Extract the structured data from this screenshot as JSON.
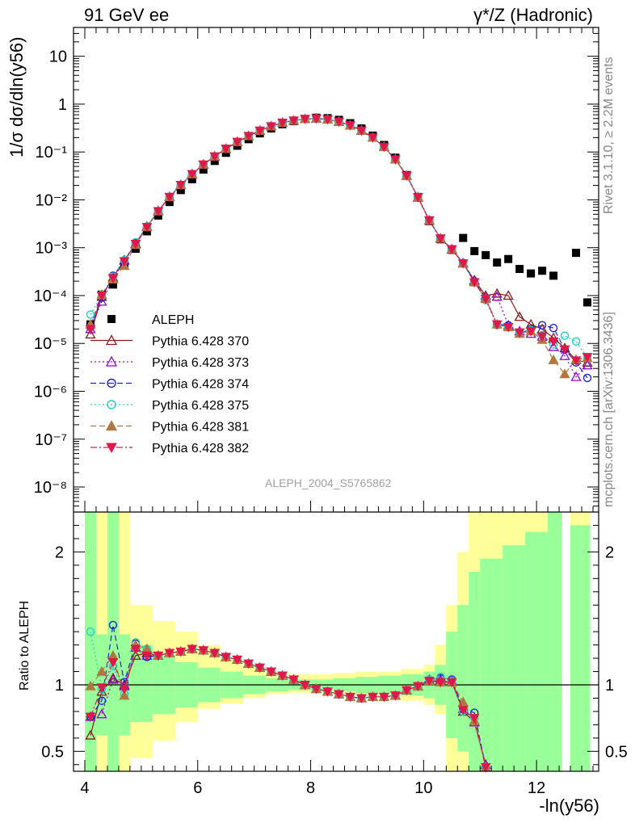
{
  "header": {
    "left_title": "91 GeV ee",
    "right_title": "γ*/Z (Hadronic)"
  },
  "side_labels": {
    "rivet": "Rivet 3.1.10, ≥ 2.2M events",
    "mcplots": "mcplots.cern.ch [arXiv:1306.3436]"
  },
  "analysis_id": "ALEPH_2004_S5765862",
  "colors": {
    "data": "#000000",
    "p370": "#8b1a1a",
    "p373": "#9400d3",
    "p374": "#2020dd",
    "p375": "#20d0c0",
    "p381": "#b07840",
    "p382": "#e0184a",
    "band_inner": "#99ff99",
    "band_outer": "#ffff99"
  },
  "chart_data": [
    {
      "type": "scatter",
      "panel": "main",
      "ylabel": "1/σ  dσ/dln(y56)",
      "xlabel": "-ln(y56)",
      "yscale": "log",
      "xlim": [
        3.8,
        13.1
      ],
      "ylim": [
        3e-09,
        40
      ],
      "y_tick_labels": [
        "10⁻⁸",
        "10⁻⁷",
        "10⁻⁶",
        "10⁻⁵",
        "10⁻⁴",
        "10⁻³",
        "10⁻²",
        "10⁻¹",
        "1",
        "10"
      ],
      "legend_position": "left-middle",
      "x": [
        4.1,
        4.3,
        4.5,
        4.7,
        4.9,
        5.1,
        5.3,
        5.5,
        5.7,
        5.9,
        6.1,
        6.3,
        6.5,
        6.7,
        6.9,
        7.1,
        7.3,
        7.5,
        7.7,
        7.9,
        8.1,
        8.3,
        8.5,
        8.7,
        8.9,
        9.1,
        9.3,
        9.5,
        9.7,
        9.9,
        10.1,
        10.3,
        10.5,
        10.7,
        10.9,
        11.1,
        11.3,
        11.5,
        11.7,
        11.9,
        12.1,
        12.3,
        12.5,
        12.7,
        12.9
      ],
      "series": [
        {
          "name": "ALEPH",
          "key": "data",
          "marker": "square-filled",
          "values": [
            2.5e-05,
            0.000105,
            0.00017,
            0.00045,
            0.00095,
            0.0022,
            0.0047,
            0.009,
            0.016,
            0.027,
            0.043,
            0.065,
            0.096,
            0.135,
            0.185,
            0.245,
            0.31,
            0.38,
            0.44,
            0.49,
            0.52,
            0.51,
            0.47,
            0.4,
            0.31,
            0.22,
            0.14,
            0.076,
            0.033,
            0.0115,
            0.0036,
            0.0015,
            0.0009,
            0.0016,
            0.00085,
            0.0007,
            0.00049,
            0.00058,
            0.00036,
            0.00029,
            0.00033,
            0.00026,
            null,
            0.00078,
            7.2e-05
          ]
        },
        {
          "name": "Pythia 6.428 370",
          "key": "p370",
          "marker": "triangle-up-open",
          "line": "solid",
          "values": [
            1.55e-05,
            9.5e-05,
            0.00024,
            0.00055,
            0.0012,
            0.00275,
            0.0058,
            0.0115,
            0.0205,
            0.0345,
            0.055,
            0.081,
            0.117,
            0.163,
            0.216,
            0.28,
            0.345,
            0.41,
            0.455,
            0.49,
            0.5,
            0.48,
            0.43,
            0.36,
            0.28,
            0.2,
            0.128,
            0.07,
            0.032,
            0.0112,
            0.0037,
            0.00155,
            0.00092,
            0.00047,
            0.00021,
            0.0001,
            0.00011,
            0.0001,
            3.6e-05,
            2.5e-05,
            2e-05,
            1.3e-05,
            8e-06,
            4.5e-06,
            4e-06
          ]
        },
        {
          "name": "Pythia 6.428 373",
          "key": "p373",
          "marker": "triangle-up-open",
          "line": "dotted",
          "values": [
            2e-05,
            7.5e-05,
            0.00022,
            0.00054,
            0.00122,
            0.00278,
            0.0059,
            0.0116,
            0.0206,
            0.0346,
            0.055,
            0.081,
            0.117,
            0.163,
            0.216,
            0.28,
            0.345,
            0.41,
            0.455,
            0.49,
            0.5,
            0.48,
            0.43,
            0.36,
            0.28,
            0.2,
            0.128,
            0.07,
            0.032,
            0.0114,
            0.00375,
            0.00157,
            0.00093,
            0.00048,
            0.0002,
            9e-05,
            9.5e-05,
            2.4e-05,
            1.8e-05,
            1.6e-05,
            1.4e-05,
            8.5e-06,
            5.5e-06,
            2e-06,
            3.5e-06
          ]
        },
        {
          "name": "Pythia 6.428 374",
          "key": "p374",
          "marker": "circle-open",
          "line": "dashed",
          "values": [
            2.2e-05,
            9e-05,
            0.00026,
            0.00053,
            0.00125,
            0.00275,
            0.0058,
            0.0116,
            0.0205,
            0.0345,
            0.055,
            0.081,
            0.117,
            0.163,
            0.216,
            0.28,
            0.345,
            0.41,
            0.455,
            0.49,
            0.5,
            0.48,
            0.43,
            0.36,
            0.28,
            0.2,
            0.128,
            0.07,
            0.032,
            0.0114,
            0.00375,
            0.00158,
            0.00094,
            0.00048,
            0.0002,
            8.5e-05,
            2.5e-05,
            2.4e-05,
            1.6e-05,
            2e-05,
            2.4e-05,
            2.1e-05,
            7.5e-06,
            4e-06,
            1.9e-06
          ]
        },
        {
          "name": "Pythia 6.428 375",
          "key": "p375",
          "marker": "circle-open",
          "line": "dotted",
          "values": [
            4e-05,
            0.000105,
            0.00025,
            0.00055,
            0.0013,
            0.0028,
            0.0059,
            0.0116,
            0.0206,
            0.0346,
            0.055,
            0.081,
            0.117,
            0.163,
            0.216,
            0.28,
            0.345,
            0.41,
            0.455,
            0.49,
            0.5,
            0.48,
            0.43,
            0.36,
            0.28,
            0.2,
            0.128,
            0.07,
            0.032,
            0.0114,
            0.0038,
            0.00158,
            0.00093,
            0.00047,
            0.00019,
            8e-05,
            2.4e-05,
            2.2e-05,
            1.7e-05,
            1.9e-05,
            1.5e-05,
            9.5e-06,
            1.45e-05,
            1.1e-05,
            5e-06
          ]
        },
        {
          "name": "Pythia 6.428 381",
          "key": "p381",
          "marker": "triangle-up-filled",
          "line": "dashed",
          "values": [
            2.5e-05,
            0.000105,
            0.00022,
            0.00042,
            0.00115,
            0.0027,
            0.0058,
            0.0115,
            0.0205,
            0.0345,
            0.055,
            0.081,
            0.117,
            0.163,
            0.216,
            0.28,
            0.345,
            0.41,
            0.455,
            0.49,
            0.5,
            0.48,
            0.43,
            0.36,
            0.28,
            0.2,
            0.128,
            0.07,
            0.032,
            0.0114,
            0.00375,
            0.00156,
            0.00093,
            0.00047,
            0.00019,
            8.5e-05,
            2.5e-05,
            2.2e-05,
            1.6e-05,
            1.8e-05,
            1.2e-05,
            4.5e-06,
            2.3e-06,
            4.6e-06,
            5e-06
          ]
        },
        {
          "name": "Pythia 6.428 382",
          "key": "p382",
          "marker": "triangle-down-filled",
          "line": "dashdot",
          "values": [
            2e-05,
            0.0001,
            0.00023,
            0.00052,
            0.0012,
            0.0027,
            0.0058,
            0.0115,
            0.0205,
            0.0345,
            0.055,
            0.081,
            0.117,
            0.163,
            0.216,
            0.28,
            0.345,
            0.41,
            0.455,
            0.49,
            0.5,
            0.48,
            0.43,
            0.36,
            0.28,
            0.2,
            0.128,
            0.07,
            0.032,
            0.0114,
            0.00375,
            0.00156,
            0.00093,
            0.00047,
            0.00019,
            8.5e-05,
            2.5e-05,
            2.2e-05,
            1.7e-05,
            1.8e-05,
            1.4e-05,
            1.1e-05,
            7.5e-06,
            4.4e-06,
            5.2e-06
          ]
        }
      ]
    },
    {
      "type": "scatter",
      "panel": "ratio",
      "ylabel": "Ratio to ALEPH",
      "xlabel": "-ln(y56)",
      "xlim": [
        3.8,
        13.1
      ],
      "ylim": [
        0.35,
        2.3
      ],
      "y_ticks": [
        0.5,
        1,
        2
      ],
      "x_ticks": [
        4,
        6,
        8,
        10,
        12
      ],
      "reference_line": 1,
      "x": [
        4.1,
        4.3,
        4.5,
        4.7,
        4.9,
        5.1,
        5.3,
        5.5,
        5.7,
        5.9,
        6.1,
        6.3,
        6.5,
        6.7,
        6.9,
        7.1,
        7.3,
        7.5,
        7.7,
        7.9,
        8.1,
        8.3,
        8.5,
        8.7,
        8.9,
        9.1,
        9.3,
        9.5,
        9.7,
        9.9,
        10.1,
        10.3,
        10.5,
        10.7,
        10.9,
        11.1
      ],
      "band_inner": [
        [
          4.0,
          4.2,
          0.3,
          2.3
        ],
        [
          4.2,
          4.4,
          0.62,
          1.38
        ],
        [
          4.4,
          4.6,
          0.35,
          2.3
        ],
        [
          4.6,
          4.8,
          0.62,
          1.38
        ],
        [
          4.8,
          5.2,
          0.72,
          1.3
        ],
        [
          5.2,
          5.6,
          0.78,
          1.22
        ],
        [
          5.6,
          6.0,
          0.83,
          1.17
        ],
        [
          6.0,
          6.4,
          0.87,
          1.13
        ],
        [
          6.4,
          6.8,
          0.9,
          1.1
        ],
        [
          6.8,
          7.2,
          0.93,
          1.07
        ],
        [
          7.2,
          7.6,
          0.95,
          1.05
        ],
        [
          7.6,
          8.0,
          0.96,
          1.04
        ],
        [
          8.0,
          8.4,
          0.96,
          1.04
        ],
        [
          8.4,
          8.8,
          0.95,
          1.05
        ],
        [
          8.8,
          9.2,
          0.94,
          1.06
        ],
        [
          9.2,
          9.6,
          0.93,
          1.07
        ],
        [
          9.6,
          10.0,
          0.92,
          1.08
        ],
        [
          10.0,
          10.2,
          0.9,
          1.1
        ],
        [
          10.2,
          10.4,
          0.85,
          1.15
        ],
        [
          10.4,
          10.6,
          0.6,
          1.4
        ],
        [
          10.6,
          10.8,
          0.5,
          1.6
        ],
        [
          10.8,
          11.0,
          0.35,
          1.85
        ],
        [
          11.0,
          11.4,
          0.3,
          1.95
        ],
        [
          11.4,
          11.8,
          0.3,
          2.05
        ],
        [
          11.8,
          12.2,
          0.3,
          2.15
        ],
        [
          12.2,
          12.45,
          0.3,
          2.3
        ],
        [
          12.6,
          12.95,
          0.3,
          2.2
        ]
      ],
      "band_outer": [
        [
          4.0,
          4.2,
          0.3,
          2.3
        ],
        [
          4.2,
          4.4,
          0.3,
          2.3
        ],
        [
          4.4,
          4.6,
          0.3,
          2.3
        ],
        [
          4.6,
          4.8,
          0.3,
          2.3
        ],
        [
          4.8,
          5.2,
          0.45,
          1.6
        ],
        [
          5.2,
          5.6,
          0.58,
          1.48
        ],
        [
          5.6,
          6.0,
          0.72,
          1.4
        ],
        [
          6.0,
          6.4,
          0.82,
          1.3
        ],
        [
          6.4,
          6.8,
          0.86,
          1.2
        ],
        [
          6.8,
          7.2,
          0.9,
          1.14
        ],
        [
          7.2,
          7.6,
          0.93,
          1.1
        ],
        [
          7.6,
          8.0,
          0.94,
          1.08
        ],
        [
          8.0,
          8.4,
          0.94,
          1.08
        ],
        [
          8.4,
          8.8,
          0.92,
          1.09
        ],
        [
          8.8,
          9.2,
          0.91,
          1.1
        ],
        [
          9.2,
          9.6,
          0.9,
          1.1
        ],
        [
          9.6,
          10.0,
          0.88,
          1.12
        ],
        [
          10.0,
          10.2,
          0.85,
          1.15
        ],
        [
          10.2,
          10.4,
          0.78,
          1.3
        ],
        [
          10.4,
          10.6,
          0.3,
          1.6
        ],
        [
          10.6,
          10.8,
          0.3,
          2.0
        ],
        [
          10.8,
          11.0,
          0.3,
          2.3
        ],
        [
          11.0,
          11.4,
          0.3,
          2.3
        ],
        [
          11.4,
          11.8,
          0.3,
          2.3
        ],
        [
          11.8,
          12.2,
          0.3,
          2.3
        ],
        [
          12.2,
          12.45,
          0.3,
          2.3
        ],
        [
          12.6,
          12.95,
          0.3,
          2.3
        ]
      ],
      "series": [
        {
          "name": "Pythia 6.428 370",
          "key": "p370",
          "values": [
            0.62,
            0.95,
            1.05,
            1.0,
            1.22,
            1.24,
            1.22,
            1.24,
            1.25,
            1.27,
            1.26,
            1.24,
            1.21,
            1.19,
            1.16,
            1.13,
            1.1,
            1.07,
            1.04,
            1.0,
            0.97,
            0.95,
            0.93,
            0.91,
            0.9,
            0.91,
            0.91,
            0.92,
            0.96,
            0.99,
            1.03,
            1.03,
            1.02,
            0.8,
            0.72,
            0.4
          ]
        },
        {
          "name": "Pythia 6.428 373",
          "key": "p373",
          "values": [
            0.76,
            0.78,
            1.04,
            0.99,
            1.28,
            1.22,
            1.22,
            1.24,
            1.25,
            1.27,
            1.26,
            1.24,
            1.21,
            1.19,
            1.16,
            1.13,
            1.1,
            1.07,
            1.04,
            1.0,
            0.97,
            0.95,
            0.93,
            0.91,
            0.9,
            0.91,
            0.91,
            0.92,
            0.96,
            0.99,
            1.04,
            1.04,
            1.03,
            0.82,
            0.72,
            0.4
          ]
        },
        {
          "name": "Pythia 6.428 374",
          "key": "p374",
          "values": [
            0.76,
            0.88,
            1.45,
            1.02,
            1.31,
            1.21,
            1.22,
            1.24,
            1.25,
            1.27,
            1.26,
            1.24,
            1.21,
            1.19,
            1.16,
            1.13,
            1.1,
            1.07,
            1.04,
            1.0,
            0.97,
            0.95,
            0.93,
            0.91,
            0.9,
            0.91,
            0.91,
            0.92,
            0.96,
            0.99,
            1.04,
            1.05,
            1.04,
            0.82,
            0.79,
            0.38
          ]
        },
        {
          "name": "Pythia 6.428 375",
          "key": "p375",
          "values": [
            1.4,
            0.97,
            1.14,
            0.93,
            1.32,
            1.27,
            1.22,
            1.24,
            1.25,
            1.27,
            1.26,
            1.24,
            1.21,
            1.19,
            1.16,
            1.13,
            1.1,
            1.07,
            1.04,
            1.0,
            0.97,
            0.95,
            0.93,
            0.91,
            0.9,
            0.91,
            0.91,
            0.92,
            0.96,
            0.99,
            1.04,
            1.06,
            1.03,
            0.8,
            0.75,
            0.38
          ]
        },
        {
          "name": "Pythia 6.428 381",
          "key": "p381",
          "values": [
            0.99,
            1.1,
            1.22,
            0.92,
            1.3,
            1.27,
            1.22,
            1.24,
            1.25,
            1.27,
            1.26,
            1.24,
            1.21,
            1.19,
            1.16,
            1.13,
            1.1,
            1.07,
            1.04,
            1.0,
            0.97,
            0.95,
            0.93,
            0.91,
            0.9,
            0.91,
            0.91,
            0.92,
            0.96,
            0.99,
            1.03,
            1.02,
            1.02,
            0.87,
            0.73,
            0.38
          ]
        },
        {
          "name": "Pythia 6.428 382",
          "key": "p382",
          "values": [
            0.76,
            0.98,
            1.17,
            0.97,
            1.27,
            1.22,
            1.22,
            1.24,
            1.25,
            1.27,
            1.26,
            1.24,
            1.21,
            1.19,
            1.16,
            1.13,
            1.1,
            1.07,
            1.04,
            1.0,
            0.97,
            0.95,
            0.93,
            0.91,
            0.9,
            0.91,
            0.91,
            0.92,
            0.96,
            0.99,
            1.03,
            1.02,
            1.02,
            0.81,
            0.75,
            0.38
          ]
        }
      ]
    }
  ]
}
